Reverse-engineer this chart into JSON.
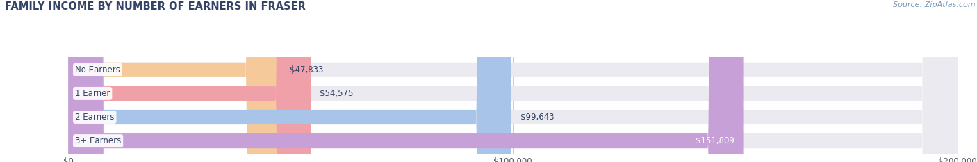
{
  "title": "FAMILY INCOME BY NUMBER OF EARNERS IN FRASER",
  "source": "Source: ZipAtlas.com",
  "categories": [
    "No Earners",
    "1 Earner",
    "2 Earners",
    "3+ Earners"
  ],
  "values": [
    47833,
    54575,
    99643,
    151809
  ],
  "bar_colors": [
    "#f5c99a",
    "#f0a0a8",
    "#a8c4e8",
    "#c8a0d8"
  ],
  "bg_bar_color": "#eaeaf0",
  "value_labels": [
    "$47,833",
    "$54,575",
    "$99,643",
    "$151,809"
  ],
  "xlim": [
    0,
    200000
  ],
  "xticks": [
    0,
    100000,
    200000
  ],
  "xtick_labels": [
    "$0",
    "$100,000",
    "$200,000"
  ],
  "background_color": "#ffffff",
  "title_color": "#334466",
  "title_fontsize": 10.5,
  "source_color": "#7799bb",
  "source_fontsize": 8,
  "bar_height": 0.62,
  "figsize": [
    14.06,
    2.33
  ],
  "dpi": 100
}
